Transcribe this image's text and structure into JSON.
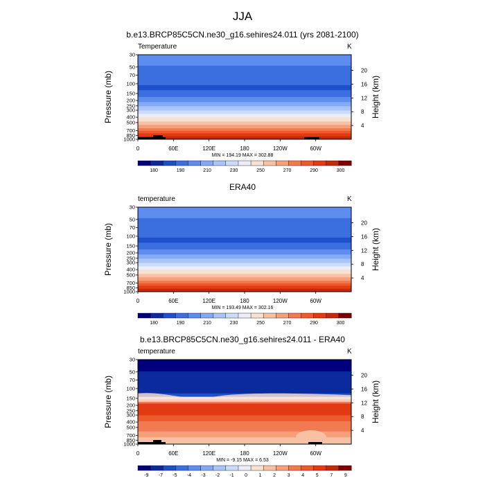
{
  "figure": {
    "title": "JJA"
  },
  "chart_data": [
    {
      "type": "heatmap",
      "title": "b.e13.BRCP85C5CN.ne30_g16.sehires24.011 (yrs 2081-2100)",
      "left_label": "Temperature",
      "units": "K",
      "ylabel": "Pressure (mb)",
      "ylabel_right": "Height (km)",
      "xticks": [
        "0",
        "60E",
        "120E",
        "180",
        "120W",
        "60W"
      ],
      "yticks": [
        "30",
        "50",
        "70",
        "100",
        "150",
        "200",
        "250",
        "300",
        "400",
        "500",
        "700",
        "850",
        "1000"
      ],
      "yticks_right": [
        "20",
        "16",
        "12",
        "8",
        "4"
      ],
      "minmax": "MIN = 194.19  MAX = 302.88",
      "colorbar_labels": [
        "180",
        "190",
        "210",
        "230",
        "250",
        "270",
        "290",
        "300"
      ],
      "field": "absolute"
    },
    {
      "type": "heatmap",
      "title": "ERA40",
      "left_label": "temperature",
      "units": "K",
      "ylabel": "Pressure (mb)",
      "ylabel_right": "Height (km)",
      "xticks": [
        "0",
        "60E",
        "120E",
        "180",
        "120W",
        "60W"
      ],
      "yticks": [
        "30",
        "50",
        "70",
        "100",
        "150",
        "200",
        "250",
        "300",
        "400",
        "500",
        "700",
        "850",
        "1000"
      ],
      "yticks_right": [
        "20",
        "16",
        "12",
        "8",
        "4"
      ],
      "minmax": "MIN = 193.49  MAX = 302.16",
      "colorbar_labels": [
        "180",
        "190",
        "210",
        "230",
        "250",
        "270",
        "290",
        "300"
      ],
      "field": "absolute"
    },
    {
      "type": "heatmap",
      "title": "b.e13.BRCP85C5CN.ne30_g16.sehires24.011 - ERA40",
      "left_label": "temperature",
      "units": "K",
      "ylabel": "Pressure (mb)",
      "ylabel_right": "Height (km)",
      "xticks": [
        "0",
        "60E",
        "120E",
        "180",
        "120W",
        "60W"
      ],
      "yticks": [
        "30",
        "50",
        "70",
        "100",
        "150",
        "200",
        "250",
        "300",
        "400",
        "500",
        "700",
        "850",
        "1000"
      ],
      "yticks_right": [
        "20",
        "16",
        "12",
        "8",
        "4"
      ],
      "minmax": "MIN = -9.15  MAX =  6.53",
      "colorbar_labels": [
        "-9",
        "-7",
        "-5",
        "-4",
        "-3",
        "-2",
        "-1",
        "0",
        "1",
        "2",
        "3",
        "4",
        "5",
        "7",
        "9"
      ],
      "field": "difference"
    }
  ],
  "palette": [
    "#00007f",
    "#0a2a9e",
    "#1f4fc9",
    "#3b6fe0",
    "#5e8df0",
    "#85aaf5",
    "#aac4f8",
    "#cbdcfa",
    "#e9eef8",
    "#f9e1d2",
    "#f7c2a4",
    "#f5a07a",
    "#f27a50",
    "#ef5a2c",
    "#e23a12",
    "#c42a08",
    "#7f0000"
  ]
}
